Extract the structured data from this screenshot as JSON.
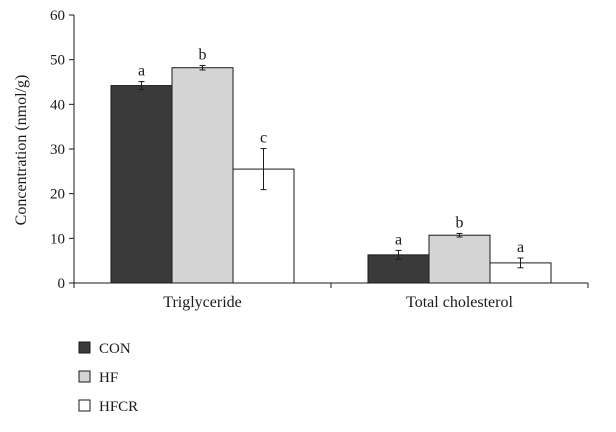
{
  "chart_data": {
    "type": "bar",
    "title": "",
    "xlabel": "",
    "ylabel": "Concentration (nmol/g)",
    "ylim": [
      0,
      60
    ],
    "yticks": [
      0,
      10,
      20,
      30,
      40,
      50,
      60
    ],
    "grid": false,
    "legend_position": "bottom-left",
    "categories": [
      "Triglyceride",
      "Total cholesterol"
    ],
    "series": [
      {
        "name": "CON",
        "color": "#3a3a3a",
        "values": [
          44.2,
          6.3
        ],
        "errors": [
          0.9,
          1.0
        ],
        "labels": [
          "a",
          "a"
        ]
      },
      {
        "name": "HF",
        "color": "#d4d4d4",
        "values": [
          48.2,
          10.7
        ],
        "errors": [
          0.5,
          0.4
        ],
        "labels": [
          "b",
          "b"
        ]
      },
      {
        "name": "HFCR",
        "color": "#ffffff",
        "values": [
          25.5,
          4.5
        ],
        "errors": [
          4.6,
          1.1
        ],
        "labels": [
          "c",
          "a"
        ]
      }
    ]
  }
}
